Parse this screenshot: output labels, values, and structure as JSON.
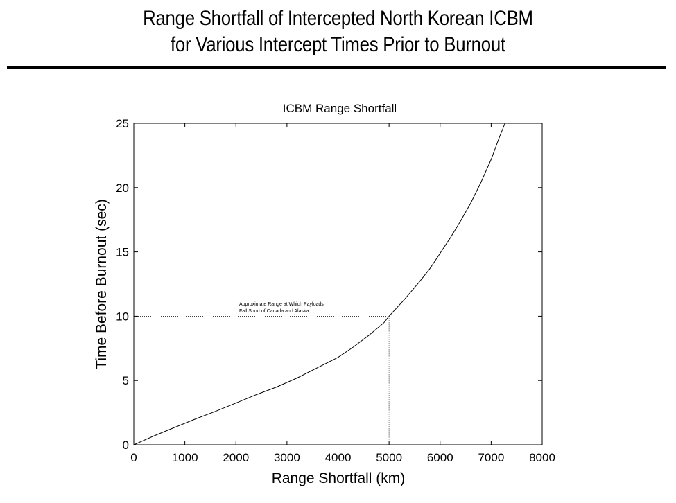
{
  "slide": {
    "title_line1": "Range Shortfall of Intercepted North Korean ICBM",
    "title_line2": "for Various Intercept Times Prior to Burnout"
  },
  "chart_data": {
    "type": "line",
    "title": "ICBM Range Shortfall",
    "xlabel": "Range Shortfall (km)",
    "ylabel": "Time Before Burnout (sec)",
    "xlim": [
      0,
      8000
    ],
    "ylim": [
      0,
      25
    ],
    "xticks": [
      "0",
      "1000",
      "2000",
      "3000",
      "4000",
      "5000",
      "6000",
      "7000",
      "8000"
    ],
    "yticks": [
      "0",
      "5",
      "10",
      "15",
      "20",
      "25"
    ],
    "grid": false,
    "series": [
      {
        "x": [
          0,
          400,
          800,
          1200,
          1600,
          2000,
          2400,
          2800,
          3200,
          3600,
          4000,
          4300,
          4600,
          4900,
          5000,
          5300,
          5600,
          5800,
          6000,
          6200,
          6400,
          6600,
          6800,
          7000,
          7150,
          7270
        ],
        "y": [
          0,
          0.7,
          1.35,
          2.0,
          2.6,
          3.25,
          3.9,
          4.5,
          5.2,
          6.0,
          6.8,
          7.6,
          8.5,
          9.5,
          10.0,
          11.3,
          12.7,
          13.7,
          14.9,
          16.1,
          17.4,
          18.8,
          20.4,
          22.2,
          23.8,
          25.0
        ]
      }
    ],
    "reference": {
      "x": 5000,
      "y": 10,
      "style": "dotted",
      "annotation_line1": "Approximate Range at Which Payloads",
      "annotation_line2": "Fall Short of Canada and Alaska"
    }
  }
}
